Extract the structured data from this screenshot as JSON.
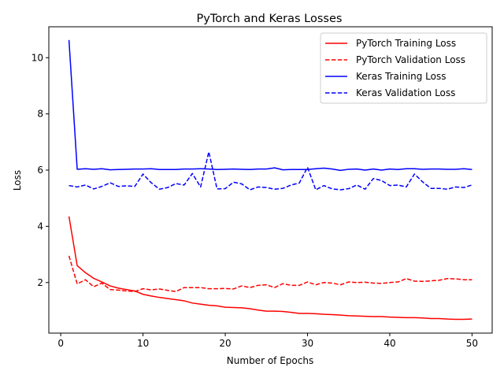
{
  "chart_data": {
    "type": "line",
    "title": "PyTorch and Keras Losses",
    "xlabel": "Number of Epochs",
    "ylabel": "Loss",
    "xlim": [
      -1.45,
      52.45
    ],
    "ylim": [
      0.2,
      11.1
    ],
    "xticks": [
      0,
      10,
      20,
      30,
      40,
      50
    ],
    "yticks": [
      2,
      4,
      6,
      8,
      10
    ],
    "grid": false,
    "legend_position": "top-right",
    "x": [
      1,
      2,
      3,
      4,
      5,
      6,
      7,
      8,
      9,
      10,
      11,
      12,
      13,
      14,
      15,
      16,
      17,
      18,
      19,
      20,
      21,
      22,
      23,
      24,
      25,
      26,
      27,
      28,
      29,
      30,
      31,
      32,
      33,
      34,
      35,
      36,
      37,
      38,
      39,
      40,
      41,
      42,
      43,
      44,
      45,
      46,
      47,
      48,
      49,
      50
    ],
    "series": [
      {
        "name": "PyTorch Training Loss",
        "color": "#ff0000",
        "dash": "solid",
        "values": [
          4.35,
          2.6,
          2.35,
          2.15,
          2.02,
          1.88,
          1.8,
          1.75,
          1.7,
          1.58,
          1.52,
          1.47,
          1.43,
          1.39,
          1.35,
          1.27,
          1.23,
          1.19,
          1.17,
          1.12,
          1.11,
          1.1,
          1.07,
          1.02,
          0.98,
          0.98,
          0.97,
          0.94,
          0.9,
          0.9,
          0.89,
          0.87,
          0.86,
          0.84,
          0.82,
          0.81,
          0.8,
          0.79,
          0.79,
          0.77,
          0.76,
          0.75,
          0.75,
          0.74,
          0.72,
          0.72,
          0.7,
          0.69,
          0.69,
          0.7
        ]
      },
      {
        "name": "PyTorch Validation Loss",
        "color": "#ff0000",
        "dash": "dashed",
        "values": [
          2.95,
          1.95,
          2.1,
          1.85,
          1.98,
          1.75,
          1.73,
          1.7,
          1.68,
          1.78,
          1.74,
          1.77,
          1.72,
          1.68,
          1.82,
          1.82,
          1.82,
          1.78,
          1.78,
          1.79,
          1.77,
          1.88,
          1.82,
          1.9,
          1.92,
          1.82,
          1.96,
          1.9,
          1.9,
          2.02,
          1.92,
          2.0,
          1.98,
          1.92,
          2.02,
          2.0,
          2.01,
          1.98,
          1.97,
          2.0,
          2.02,
          2.14,
          2.05,
          2.04,
          2.06,
          2.08,
          2.14,
          2.13,
          2.1,
          2.1
        ]
      },
      {
        "name": "Keras Training Loss",
        "color": "#0000ff",
        "dash": "solid",
        "values": [
          10.63,
          6.03,
          6.05,
          6.03,
          6.05,
          6.01,
          6.02,
          6.03,
          6.04,
          6.04,
          6.05,
          6.02,
          6.02,
          6.02,
          6.04,
          6.04,
          6.05,
          6.04,
          6.02,
          6.03,
          6.04,
          6.03,
          6.02,
          6.04,
          6.04,
          6.08,
          6.01,
          6.02,
          6.02,
          6.02,
          6.05,
          6.07,
          6.04,
          5.99,
          6.03,
          6.04,
          6.0,
          6.04,
          6.0,
          6.04,
          6.02,
          6.05,
          6.05,
          6.03,
          6.04,
          6.04,
          6.03,
          6.03,
          6.05,
          6.02
        ]
      },
      {
        "name": "Keras Validation Loss",
        "color": "#0000ff",
        "dash": "dashed",
        "values": [
          5.45,
          5.4,
          5.47,
          5.33,
          5.42,
          5.55,
          5.42,
          5.44,
          5.42,
          5.86,
          5.55,
          5.32,
          5.38,
          5.52,
          5.47,
          5.88,
          5.4,
          6.65,
          5.33,
          5.34,
          5.57,
          5.51,
          5.3,
          5.4,
          5.38,
          5.32,
          5.35,
          5.47,
          5.54,
          6.1,
          5.3,
          5.45,
          5.33,
          5.3,
          5.34,
          5.47,
          5.32,
          5.7,
          5.63,
          5.45,
          5.47,
          5.4,
          5.86,
          5.58,
          5.35,
          5.35,
          5.32,
          5.4,
          5.38,
          5.47
        ]
      }
    ]
  }
}
